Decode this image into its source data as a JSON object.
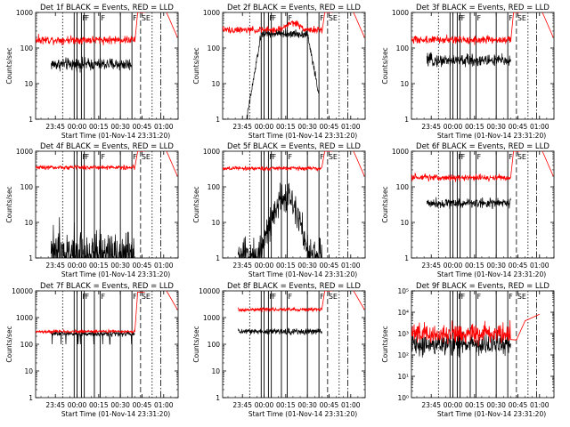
{
  "chart_data": [
    {
      "type": "line",
      "title": "Det 1f BLACK = Events, RED = LLD",
      "xlabel": "Start Time (01-Nov-14 23:31:20)",
      "ylabel": "Counts/sec",
      "yscale": "log",
      "ylim": [
        1,
        1000
      ],
      "y_tick_labels": [
        "1",
        "10",
        "100",
        "1000"
      ],
      "x_tick_labels": [
        "23:45",
        "00:00",
        "00:15",
        "00:30",
        "00:45",
        "01:00"
      ],
      "x_tick_minutes": [
        -15,
        0,
        15,
        30,
        45,
        60
      ],
      "xlim_minutes": [
        -28.7,
        70
      ],
      "events_level": 35,
      "events_range_minutes": [
        -18,
        38
      ],
      "events_noise": 0.15,
      "events_shape": "flat",
      "lld_level": 170,
      "lld_range_minutes": [
        -28.7,
        40
      ],
      "lld_noise": 0.1,
      "lld_end": "rise",
      "event_markers": [
        {
          "minutes": -10,
          "style": "dotted",
          "label": ""
        },
        {
          "minutes": -2,
          "style": "solid",
          "label": ""
        },
        {
          "minutes": 0,
          "style": "solid",
          "label": ""
        },
        {
          "minutes": 3,
          "style": "solid",
          "label": "F"
        },
        {
          "minutes": 5,
          "style": "solid",
          "label": "F"
        },
        {
          "minutes": 12,
          "style": "solid",
          "label": ""
        },
        {
          "minutes": 16,
          "style": "solid",
          "label": "F"
        },
        {
          "minutes": 30,
          "style": "solid",
          "label": ""
        },
        {
          "minutes": 38,
          "style": "solid",
          "label": "F"
        },
        {
          "minutes": 44,
          "style": "dashed",
          "label": "SE"
        },
        {
          "minutes": 52,
          "style": "dotted",
          "label": ""
        },
        {
          "minutes": 58,
          "style": "dashdot",
          "label": ""
        }
      ]
    },
    {
      "type": "line",
      "title": "Det 2f BLACK = Events, RED = LLD",
      "xlabel": "Start Time (01-Nov-14 23:31:20)",
      "ylabel": "Counts/sec",
      "yscale": "log",
      "ylim": [
        1,
        1000
      ],
      "y_tick_labels": [
        "1",
        "10",
        "100",
        "1000"
      ],
      "x_tick_labels": [
        "23:45",
        "00:00",
        "00:15",
        "00:30",
        "00:45",
        "01:00"
      ],
      "x_tick_minutes": [
        -15,
        0,
        15,
        30,
        45,
        60
      ],
      "xlim_minutes": [
        -28.7,
        70
      ],
      "events_level": 250,
      "events_range_minutes": [
        -12,
        38
      ],
      "events_noise": 0.1,
      "events_shape": "rise-fall",
      "lld_level": 320,
      "lld_range_minutes": [
        -28.7,
        40
      ],
      "lld_noise": 0.08,
      "lld_end": "rise",
      "event_markers": [
        {
          "minutes": -10,
          "style": "dotted",
          "label": ""
        },
        {
          "minutes": -2,
          "style": "solid",
          "label": ""
        },
        {
          "minutes": 0,
          "style": "solid",
          "label": ""
        },
        {
          "minutes": 3,
          "style": "solid",
          "label": "F"
        },
        {
          "minutes": 5,
          "style": "solid",
          "label": "F"
        },
        {
          "minutes": 12,
          "style": "solid",
          "label": ""
        },
        {
          "minutes": 16,
          "style": "solid",
          "label": "F"
        },
        {
          "minutes": 30,
          "style": "solid",
          "label": ""
        },
        {
          "minutes": 38,
          "style": "solid",
          "label": "F"
        },
        {
          "minutes": 44,
          "style": "dashed",
          "label": "SE"
        },
        {
          "minutes": 52,
          "style": "dotted",
          "label": ""
        },
        {
          "minutes": 58,
          "style": "dashdot",
          "label": ""
        }
      ]
    },
    {
      "type": "line",
      "title": "Det 3f BLACK = Events, RED = LLD",
      "xlabel": "Start Time (01-Nov-14 23:31:20)",
      "ylabel": "Counts/sec",
      "yscale": "log",
      "ylim": [
        1,
        1000
      ],
      "y_tick_labels": [
        "1",
        "10",
        "100",
        "1000"
      ],
      "x_tick_labels": [
        "23:45",
        "00:00",
        "00:15",
        "00:30",
        "00:45",
        "01:00"
      ],
      "x_tick_minutes": [
        -15,
        0,
        15,
        30,
        45,
        60
      ],
      "xlim_minutes": [
        -28.7,
        70
      ],
      "events_level": 45,
      "events_range_minutes": [
        -18,
        40
      ],
      "events_noise": 0.15,
      "events_shape": "flat",
      "lld_level": 170,
      "lld_range_minutes": [
        -28.7,
        40
      ],
      "lld_noise": 0.1,
      "lld_end": "rise",
      "event_markers": [
        {
          "minutes": -10,
          "style": "dotted",
          "label": ""
        },
        {
          "minutes": -2,
          "style": "solid",
          "label": ""
        },
        {
          "minutes": 0,
          "style": "solid",
          "label": ""
        },
        {
          "minutes": 3,
          "style": "solid",
          "label": "F"
        },
        {
          "minutes": 5,
          "style": "solid",
          "label": "F"
        },
        {
          "minutes": 12,
          "style": "solid",
          "label": ""
        },
        {
          "minutes": 16,
          "style": "solid",
          "label": "F"
        },
        {
          "minutes": 30,
          "style": "solid",
          "label": ""
        },
        {
          "minutes": 38,
          "style": "solid",
          "label": "F"
        },
        {
          "minutes": 44,
          "style": "dashed",
          "label": "SE"
        },
        {
          "minutes": 52,
          "style": "dotted",
          "label": ""
        },
        {
          "minutes": 58,
          "style": "dashdot",
          "label": ""
        }
      ]
    },
    {
      "type": "line",
      "title": "Det 4f BLACK = Events, RED = LLD",
      "xlabel": "Start Time (01-Nov-14 23:31:20)",
      "ylabel": "Counts/sec",
      "yscale": "log",
      "ylim": [
        1,
        1000
      ],
      "y_tick_labels": [
        "1",
        "10",
        "100",
        "1000"
      ],
      "x_tick_labels": [
        "23:45",
        "00:00",
        "00:15",
        "00:30",
        "00:45",
        "01:00"
      ],
      "x_tick_minutes": [
        -15,
        0,
        15,
        30,
        45,
        60
      ],
      "xlim_minutes": [
        -28.7,
        70
      ],
      "events_level": 1.3,
      "events_range_minutes": [
        -18,
        40
      ],
      "events_noise": 0.5,
      "events_shape": "spiky",
      "lld_level": 350,
      "lld_range_minutes": [
        -28.7,
        40
      ],
      "lld_noise": 0.05,
      "lld_end": "rise",
      "event_markers": [
        {
          "minutes": -10,
          "style": "dotted",
          "label": ""
        },
        {
          "minutes": -2,
          "style": "solid",
          "label": ""
        },
        {
          "minutes": 0,
          "style": "solid",
          "label": ""
        },
        {
          "minutes": 3,
          "style": "solid",
          "label": "F"
        },
        {
          "minutes": 5,
          "style": "solid",
          "label": "F"
        },
        {
          "minutes": 12,
          "style": "solid",
          "label": ""
        },
        {
          "minutes": 16,
          "style": "solid",
          "label": "F"
        },
        {
          "minutes": 30,
          "style": "solid",
          "label": ""
        },
        {
          "minutes": 38,
          "style": "solid",
          "label": "F"
        },
        {
          "minutes": 44,
          "style": "dashed",
          "label": "SE"
        },
        {
          "minutes": 52,
          "style": "dotted",
          "label": ""
        },
        {
          "minutes": 58,
          "style": "dashdot",
          "label": ""
        }
      ]
    },
    {
      "type": "line",
      "title": "Det 5f BLACK = Events, RED = LLD",
      "xlabel": "Start Time (01-Nov-14 23:31:20)",
      "ylabel": "Counts/sec",
      "yscale": "log",
      "ylim": [
        1,
        1000
      ],
      "y_tick_labels": [
        "1",
        "10",
        "100",
        "1000"
      ],
      "x_tick_labels": [
        "23:45",
        "00:00",
        "00:15",
        "00:30",
        "00:45",
        "01:00"
      ],
      "x_tick_minutes": [
        -15,
        0,
        15,
        30,
        45,
        60
      ],
      "xlim_minutes": [
        -28.7,
        70
      ],
      "events_level": 40,
      "events_range_minutes": [
        -18,
        40
      ],
      "events_noise": 0.4,
      "events_shape": "hump",
      "lld_level": 330,
      "lld_range_minutes": [
        -28.7,
        40
      ],
      "lld_noise": 0.05,
      "lld_end": "rise",
      "event_markers": [
        {
          "minutes": -10,
          "style": "dotted",
          "label": ""
        },
        {
          "minutes": -2,
          "style": "solid",
          "label": ""
        },
        {
          "minutes": 0,
          "style": "solid",
          "label": ""
        },
        {
          "minutes": 3,
          "style": "solid",
          "label": "F"
        },
        {
          "minutes": 5,
          "style": "solid",
          "label": "F"
        },
        {
          "minutes": 12,
          "style": "solid",
          "label": ""
        },
        {
          "minutes": 16,
          "style": "solid",
          "label": "F"
        },
        {
          "minutes": 30,
          "style": "solid",
          "label": ""
        },
        {
          "minutes": 38,
          "style": "solid",
          "label": "F"
        },
        {
          "minutes": 44,
          "style": "dashed",
          "label": "SE"
        },
        {
          "minutes": 52,
          "style": "dotted",
          "label": ""
        },
        {
          "minutes": 58,
          "style": "dashdot",
          "label": ""
        }
      ]
    },
    {
      "type": "line",
      "title": "Det 6f BLACK = Events, RED = LLD",
      "xlabel": "Start Time (01-Nov-14 23:31:20)",
      "ylabel": "Counts/sec",
      "yscale": "log",
      "ylim": [
        1,
        1000
      ],
      "y_tick_labels": [
        "1",
        "10",
        "100",
        "1000"
      ],
      "x_tick_labels": [
        "23:45",
        "00:00",
        "00:15",
        "00:30",
        "00:45",
        "01:00"
      ],
      "x_tick_minutes": [
        -15,
        0,
        15,
        30,
        45,
        60
      ],
      "xlim_minutes": [
        -28.7,
        70
      ],
      "events_level": 35,
      "events_range_minutes": [
        -18,
        40
      ],
      "events_noise": 0.12,
      "events_shape": "flat",
      "lld_level": 180,
      "lld_range_minutes": [
        -28.7,
        40
      ],
      "lld_noise": 0.08,
      "lld_end": "rise",
      "event_markers": [
        {
          "minutes": -10,
          "style": "dotted",
          "label": ""
        },
        {
          "minutes": -2,
          "style": "solid",
          "label": ""
        },
        {
          "minutes": 0,
          "style": "solid",
          "label": ""
        },
        {
          "minutes": 3,
          "style": "solid",
          "label": "F"
        },
        {
          "minutes": 5,
          "style": "solid",
          "label": "F"
        },
        {
          "minutes": 12,
          "style": "solid",
          "label": ""
        },
        {
          "minutes": 16,
          "style": "solid",
          "label": "F"
        },
        {
          "minutes": 30,
          "style": "solid",
          "label": ""
        },
        {
          "minutes": 38,
          "style": "solid",
          "label": "F"
        },
        {
          "minutes": 44,
          "style": "dashed",
          "label": "SE"
        },
        {
          "minutes": 52,
          "style": "dotted",
          "label": ""
        },
        {
          "minutes": 58,
          "style": "dashdot",
          "label": ""
        }
      ]
    },
    {
      "type": "line",
      "title": "Det 7f BLACK = Events, RED = LLD",
      "xlabel": "Start Time (01-Nov-14 23:31:20)",
      "ylabel": "Counts/sec",
      "yscale": "log",
      "ylim": [
        1,
        10000
      ],
      "y_tick_labels": [
        "1",
        "10",
        "100",
        "1000",
        "10000"
      ],
      "x_tick_labels": [
        "23:45",
        "00:00",
        "00:15",
        "00:30",
        "00:45",
        "01:00"
      ],
      "x_tick_minutes": [
        -15,
        0,
        15,
        30,
        45,
        60
      ],
      "xlim_minutes": [
        -28.7,
        70
      ],
      "events_level": 250,
      "events_range_minutes": [
        -18,
        40
      ],
      "events_noise": 0.08,
      "events_shape": "dips",
      "lld_level": 300,
      "lld_range_minutes": [
        -28.7,
        40
      ],
      "lld_noise": 0.05,
      "lld_end": "rise-high",
      "event_markers": [
        {
          "minutes": -10,
          "style": "dotted",
          "label": ""
        },
        {
          "minutes": -2,
          "style": "solid",
          "label": ""
        },
        {
          "minutes": 0,
          "style": "solid",
          "label": ""
        },
        {
          "minutes": 3,
          "style": "solid",
          "label": "F"
        },
        {
          "minutes": 5,
          "style": "solid",
          "label": "F"
        },
        {
          "minutes": 12,
          "style": "solid",
          "label": ""
        },
        {
          "minutes": 16,
          "style": "solid",
          "label": "F"
        },
        {
          "minutes": 30,
          "style": "solid",
          "label": ""
        },
        {
          "minutes": 38,
          "style": "solid",
          "label": "F"
        },
        {
          "minutes": 44,
          "style": "dashed",
          "label": "SE"
        },
        {
          "minutes": 52,
          "style": "dotted",
          "label": ""
        },
        {
          "minutes": 58,
          "style": "dashdot",
          "label": ""
        }
      ]
    },
    {
      "type": "line",
      "title": "Det 8f BLACK = Events, RED = LLD",
      "xlabel": "Start Time (01-Nov-14 23:31:20)",
      "ylabel": "Counts/sec",
      "yscale": "log",
      "ylim": [
        1,
        10000
      ],
      "y_tick_labels": [
        "1",
        "10",
        "100",
        "1000",
        "10000"
      ],
      "x_tick_labels": [
        "23:45",
        "00:00",
        "00:15",
        "00:30",
        "00:45",
        "01:00"
      ],
      "x_tick_minutes": [
        -15,
        0,
        15,
        30,
        45,
        60
      ],
      "xlim_minutes": [
        -28.7,
        70
      ],
      "events_level": 300,
      "events_range_minutes": [
        -18,
        40
      ],
      "events_noise": 0.1,
      "events_shape": "flat",
      "lld_level": 2000,
      "lld_range_minutes": [
        -18,
        40
      ],
      "lld_noise": 0.06,
      "lld_end": "rise",
      "event_markers": [
        {
          "minutes": -10,
          "style": "dotted",
          "label": ""
        },
        {
          "minutes": -2,
          "style": "solid",
          "label": ""
        },
        {
          "minutes": 0,
          "style": "solid",
          "label": ""
        },
        {
          "minutes": 3,
          "style": "solid",
          "label": "F"
        },
        {
          "minutes": 5,
          "style": "solid",
          "label": "F"
        },
        {
          "minutes": 12,
          "style": "solid",
          "label": ""
        },
        {
          "minutes": 16,
          "style": "solid",
          "label": "F"
        },
        {
          "minutes": 30,
          "style": "solid",
          "label": ""
        },
        {
          "minutes": 38,
          "style": "solid",
          "label": "F"
        },
        {
          "minutes": 44,
          "style": "dashed",
          "label": "SE"
        },
        {
          "minutes": 52,
          "style": "dotted",
          "label": ""
        },
        {
          "minutes": 58,
          "style": "dashdot",
          "label": ""
        }
      ]
    },
    {
      "type": "line",
      "title": "Det 9f BLACK = Events, RED = LLD",
      "xlabel": "Start Time (01-Nov-14 23:31:20)",
      "ylabel": "Counts/sec",
      "yscale": "log",
      "ylim": [
        1,
        100000
      ],
      "y_tick_labels": [
        "10⁰",
        "10¹",
        "10²",
        "10³",
        "10⁴",
        "10⁵"
      ],
      "x_tick_labels": [
        "23:45",
        "00:00",
        "00:15",
        "00:30",
        "00:45",
        "01:00"
      ],
      "x_tick_minutes": [
        -15,
        0,
        15,
        30,
        45,
        60
      ],
      "xlim_minutes": [
        -28.7,
        70
      ],
      "events_level": 300,
      "events_range_minutes": [
        -28.7,
        40
      ],
      "events_noise": 0.45,
      "events_shape": "noisy",
      "lld_level": 1000,
      "lld_range_minutes": [
        -28.7,
        40
      ],
      "lld_noise": 0.4,
      "lld_end": "bump",
      "event_markers": [
        {
          "minutes": -10,
          "style": "dotted",
          "label": ""
        },
        {
          "minutes": -2,
          "style": "solid",
          "label": ""
        },
        {
          "minutes": 0,
          "style": "solid",
          "label": ""
        },
        {
          "minutes": 3,
          "style": "solid",
          "label": "F"
        },
        {
          "minutes": 5,
          "style": "solid",
          "label": "F"
        },
        {
          "minutes": 12,
          "style": "solid",
          "label": ""
        },
        {
          "minutes": 16,
          "style": "solid",
          "label": "F"
        },
        {
          "minutes": 30,
          "style": "solid",
          "label": ""
        },
        {
          "minutes": 38,
          "style": "solid",
          "label": "F"
        },
        {
          "minutes": 44,
          "style": "dashed",
          "label": "SE"
        },
        {
          "minutes": 52,
          "style": "dotted",
          "label": ""
        },
        {
          "minutes": 58,
          "style": "dashdot",
          "label": ""
        }
      ]
    }
  ],
  "colors": {
    "events": "#000000",
    "lld": "#ff0000",
    "axes": "#000000",
    "background": "#ffffff"
  }
}
